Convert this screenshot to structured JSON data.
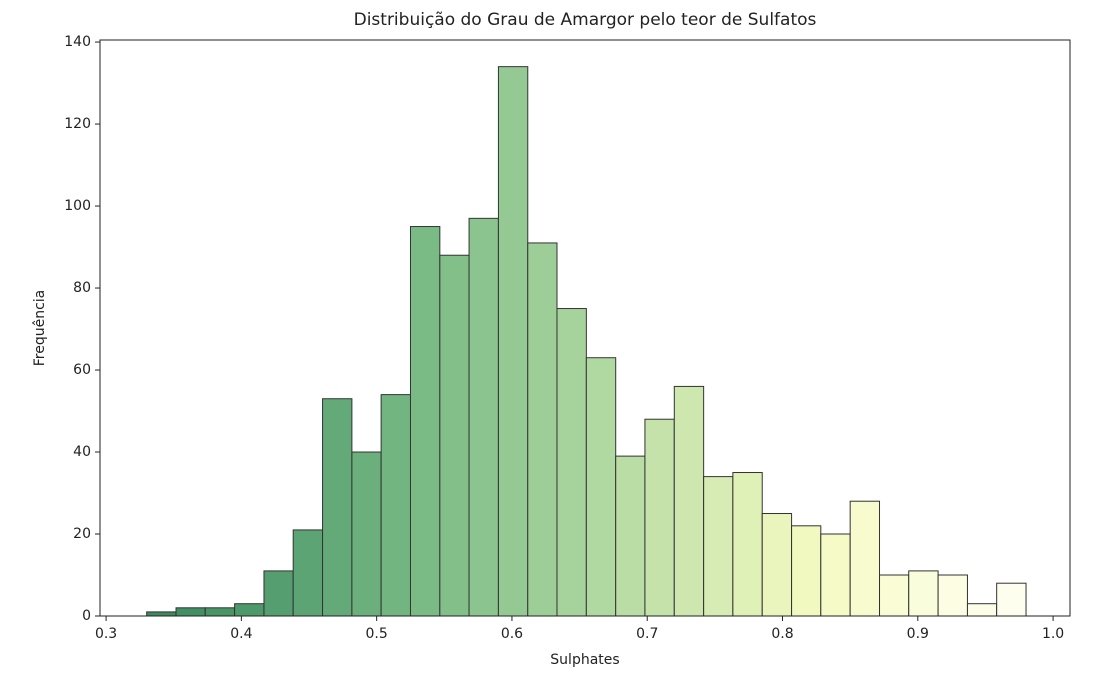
{
  "chart_data": {
    "type": "histogram",
    "title": "Distribuição do Grau de Amargor pelo teor de Sulfatos",
    "x_label": "Sulphates",
    "y_label": "Frequência",
    "bins": [
      0.33,
      0.3517,
      0.3733,
      0.395,
      0.4167,
      0.4383,
      0.46,
      0.4817,
      0.5033,
      0.525,
      0.5467,
      0.5683,
      0.59,
      0.6117,
      0.6333,
      0.655,
      0.6767,
      0.6983,
      0.72,
      0.7417,
      0.7633,
      0.785,
      0.8067,
      0.8283,
      0.85,
      0.8717,
      0.8933,
      0.915,
      0.9367,
      0.9583,
      0.98
    ],
    "values": [
      1,
      2,
      2,
      3,
      11,
      21,
      53,
      40,
      54,
      95,
      88,
      97,
      134,
      91,
      75,
      63,
      39,
      48,
      56,
      34,
      35,
      25,
      22,
      20,
      28,
      10,
      11,
      10,
      3,
      8
    ],
    "colors": [
      "#3d8a5f",
      "#428f63",
      "#489467",
      "#4e996b",
      "#559e6f",
      "#5ca474",
      "#63aa78",
      "#6aaf7c",
      "#72b581",
      "#7aba85",
      "#82bf89",
      "#8bc48e",
      "#94c993",
      "#9dce97",
      "#a6d39c",
      "#b0d8a1",
      "#badda6",
      "#c4e2aa",
      "#cde7af",
      "#d7ecb4",
      "#e0f1b8",
      "#e9f5bc",
      "#f1f9c0",
      "#f5fac6",
      "#f7fbcd",
      "#f9fcd4",
      "#fafddb",
      "#fcfde2",
      "#fdfee8",
      "#fefeee"
    ],
    "edge_color": "#333333",
    "xlim": [
      0.2955,
      1.0125
    ],
    "ylim": [
      0,
      140.5
    ],
    "xticks": [
      0.3,
      0.4,
      0.5,
      0.6,
      0.7,
      0.8,
      0.9,
      {
        "value": 1.0,
        "label": "1.0"
      }
    ],
    "yticks": [
      0,
      20,
      40,
      60,
      80,
      100,
      120,
      140
    ]
  }
}
